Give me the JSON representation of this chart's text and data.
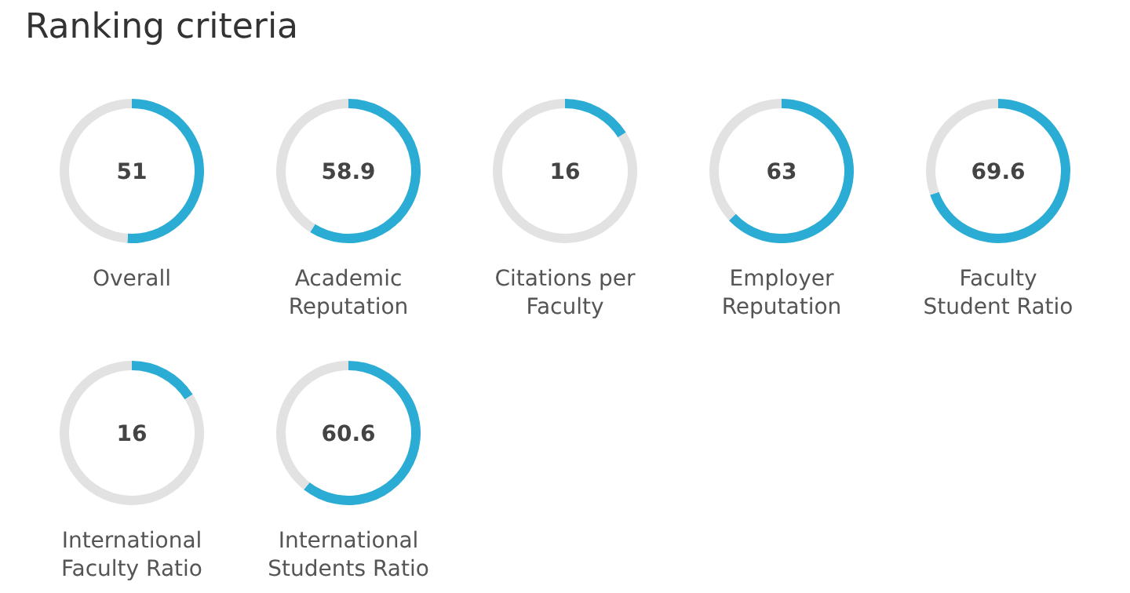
{
  "chart_data": [
    {
      "type": "other",
      "title": "Ranking criteria"
    },
    {
      "type": "donut",
      "title": "Overall",
      "categories": [
        null,
        null
      ],
      "values": [
        51,
        49
      ],
      "colors": [
        "#2aacd5",
        "#e2e2e2"
      ],
      "annotations": [
        "51"
      ]
    },
    {
      "type": "donut",
      "title": "Academic Reputation",
      "categories": [
        null,
        null
      ],
      "values": [
        58.9,
        41.1
      ],
      "colors": [
        "#2aacd5",
        "#e2e2e2"
      ],
      "annotations": [
        "58.9"
      ]
    },
    {
      "type": "donut",
      "title": "Citations per Faculty",
      "categories": [
        null,
        null
      ],
      "values": [
        16,
        84
      ],
      "colors": [
        "#2aacd5",
        "#e2e2e2"
      ],
      "annotations": [
        "16"
      ]
    },
    {
      "type": "donut",
      "title": "Employer Reputation",
      "categories": [
        null,
        null
      ],
      "values": [
        63,
        37
      ],
      "colors": [
        "#2aacd5",
        "#e2e2e2"
      ],
      "annotations": [
        "63"
      ]
    },
    {
      "type": "donut",
      "title": "Faculty Student Ratio",
      "categories": [
        null,
        null
      ],
      "values": [
        69.6,
        30.4
      ],
      "colors": [
        "#2aacd5",
        "#e2e2e2"
      ],
      "annotations": [
        "69.6"
      ]
    },
    {
      "type": "donut",
      "title": "International Faculty Ratio",
      "categories": [
        null,
        null
      ],
      "values": [
        16,
        84
      ],
      "colors": [
        "#2aacd5",
        "#e2e2e2"
      ],
      "annotations": [
        "16"
      ]
    },
    {
      "type": "donut",
      "title": "International Students Ratio",
      "categories": [
        null,
        null
      ],
      "values": [
        60.6,
        39.4
      ],
      "colors": [
        "#2aacd5",
        "#e2e2e2"
      ],
      "annotations": [
        "60.6"
      ]
    }
  ]
}
